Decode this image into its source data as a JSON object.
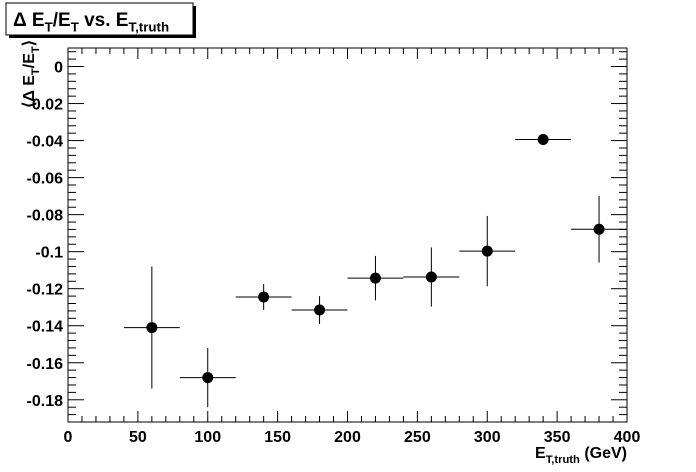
{
  "chart_data": {
    "type": "errorbar",
    "title": [
      {
        "text": "Δ E"
      },
      {
        "sub": "T"
      },
      {
        "text": "/E"
      },
      {
        "sub": "T"
      },
      {
        "text": " vs. E"
      },
      {
        "sub": "T,truth"
      }
    ],
    "ylabel": [
      {
        "text": "⟨Δ E"
      },
      {
        "sub": "T"
      },
      {
        "text": "/E"
      },
      {
        "sub": "T"
      },
      {
        "text": "⟩"
      }
    ],
    "xlabel": [
      {
        "text": "E"
      },
      {
        "sub": "T,truth"
      },
      {
        "text": " (GeV)"
      }
    ],
    "x": [
      60,
      100,
      140,
      180,
      220,
      260,
      300,
      340,
      380
    ],
    "xerr": [
      20,
      20,
      20,
      20,
      20,
      20,
      20,
      20,
      20
    ],
    "values": [
      -0.141,
      -0.168,
      -0.1245,
      -0.1315,
      -0.1143,
      -0.1137,
      -0.0997,
      -0.0394,
      -0.0879
    ],
    "yerr": [
      0.033,
      0.016,
      0.007,
      0.0075,
      0.012,
      0.016,
      0.019,
      0.001,
      0.018
    ],
    "color": "#000000",
    "xlim": [
      0,
      400
    ],
    "xticks": [
      0,
      50,
      100,
      150,
      200,
      250,
      300,
      350,
      400
    ],
    "ylim": [
      -0.192,
      0.01
    ],
    "yticks": [
      0,
      -0.02,
      -0.04,
      -0.06,
      -0.08,
      -0.1,
      -0.12,
      -0.14,
      -0.16,
      -0.18
    ]
  }
}
